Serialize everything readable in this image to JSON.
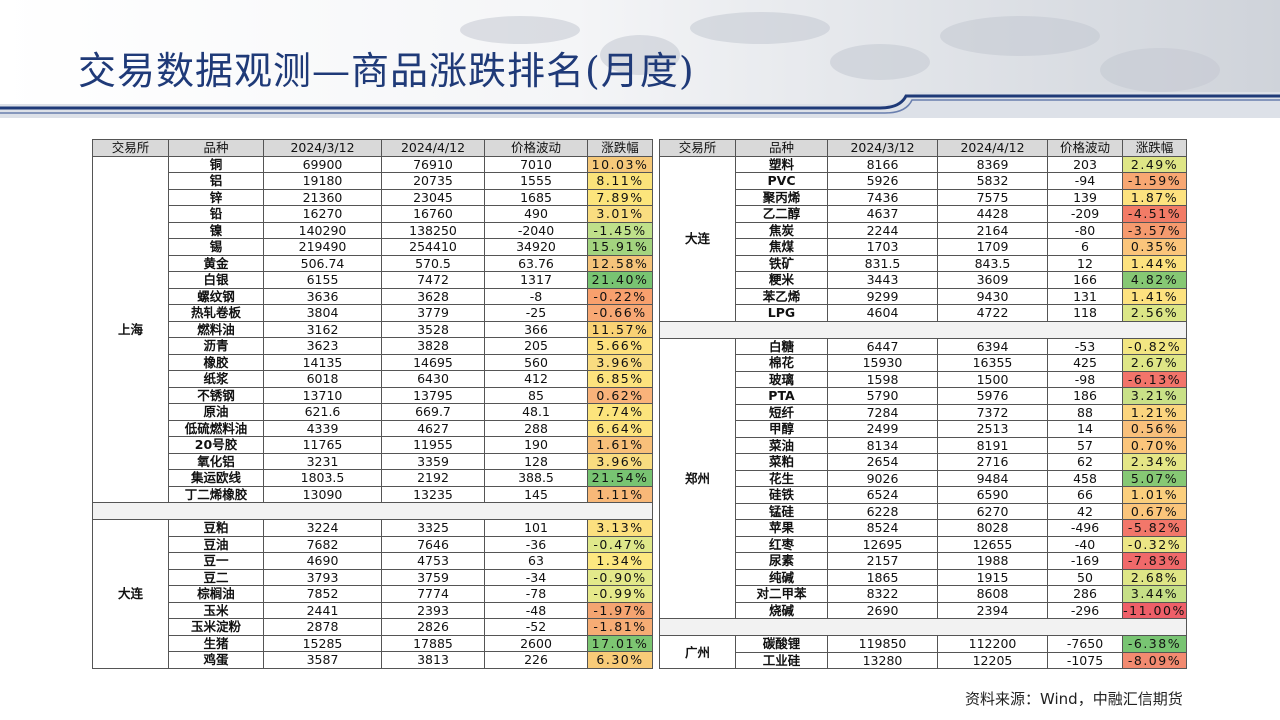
{
  "title": "交易数据观测—商品涨跌排名(月度)",
  "source": "资料来源：Wind，中融汇信期货",
  "headers": [
    "交易所",
    "品种",
    "2024/3/12",
    "2024/4/12",
    "价格波动",
    "涨跌幅"
  ],
  "left_table": {
    "groups": [
      {
        "exchange": "上海",
        "rows": [
          [
            "铜",
            "69900",
            "76910",
            "7010",
            "10.03%",
            "#f6c97a"
          ],
          [
            "铝",
            "19180",
            "20735",
            "1555",
            "8.11%",
            "#fbe37a"
          ],
          [
            "锌",
            "21360",
            "23045",
            "1685",
            "7.89%",
            "#fce57c"
          ],
          [
            "铅",
            "16270",
            "16760",
            "490",
            "3.01%",
            "#f9dd80"
          ],
          [
            "镍",
            "140290",
            "138250",
            "-2040",
            "-1.45%",
            "#bfe08a"
          ],
          [
            "锡",
            "219490",
            "254410",
            "34920",
            "15.91%",
            "#a3d47f"
          ],
          [
            "黄金",
            "506.74",
            "570.5",
            "63.76",
            "12.58%",
            "#f5c47a"
          ],
          [
            "白银",
            "6155",
            "7472",
            "1317",
            "21.40%",
            "#78c472"
          ],
          [
            "螺纹钢",
            "3636",
            "3628",
            "-8",
            "-0.22%",
            "#f8a06d"
          ],
          [
            "热轧卷板",
            "3804",
            "3779",
            "-25",
            "-0.66%",
            "#f8a874"
          ],
          [
            "燃料油",
            "3162",
            "3528",
            "366",
            "11.57%",
            "#f9d274"
          ],
          [
            "沥青",
            "3623",
            "3828",
            "205",
            "5.66%",
            "#fde17e"
          ],
          [
            "橡胶",
            "14135",
            "14695",
            "560",
            "3.96%",
            "#f9dc80"
          ],
          [
            "纸浆",
            "6018",
            "6430",
            "412",
            "6.85%",
            "#fde37d"
          ],
          [
            "不锈钢",
            "13710",
            "13795",
            "85",
            "0.62%",
            "#f9b37a"
          ],
          [
            "原油",
            "621.6",
            "669.7",
            "48.1",
            "7.74%",
            "#fce47c"
          ],
          [
            "低硫燃料油",
            "4339",
            "4627",
            "288",
            "6.64%",
            "#fde37d"
          ],
          [
            "20号胶",
            "11765",
            "11955",
            "190",
            "1.61%",
            "#f8c07a"
          ],
          [
            "氧化铝",
            "3231",
            "3359",
            "128",
            "3.96%",
            "#f9dc80"
          ],
          [
            "集运欧线",
            "1803.5",
            "2192",
            "388.5",
            "21.54%",
            "#78c472"
          ],
          [
            "丁二烯橡胶",
            "13090",
            "13235",
            "145",
            "1.11%",
            "#f8b878"
          ]
        ]
      },
      {
        "exchange": "大连",
        "rows": [
          [
            "豆粕",
            "3224",
            "3325",
            "101",
            "3.13%",
            "#fce07f"
          ],
          [
            "豆油",
            "7682",
            "7646",
            "-36",
            "-0.47%",
            "#dfe88a"
          ],
          [
            "豆一",
            "4690",
            "4753",
            "63",
            "1.34%",
            "#fde880"
          ],
          [
            "豆二",
            "3793",
            "3759",
            "-34",
            "-0.90%",
            "#e3e98a"
          ],
          [
            "棕榈油",
            "7852",
            "7774",
            "-78",
            "-0.99%",
            "#e6e98a"
          ],
          [
            "玉米",
            "2441",
            "2393",
            "-48",
            "-1.97%",
            "#f4a471"
          ],
          [
            "玉米淀粉",
            "2878",
            "2826",
            "-52",
            "-1.81%",
            "#f6ac74"
          ],
          [
            "生猪",
            "15285",
            "17885",
            "2600",
            "17.01%",
            "#7dc672"
          ],
          [
            "鸡蛋",
            "3587",
            "3813",
            "226",
            "6.30%",
            "#f8cb78"
          ]
        ]
      }
    ]
  },
  "right_table": {
    "groups": [
      {
        "exchange": "大连",
        "rows": [
          [
            "塑料",
            "8166",
            "8369",
            "203",
            "2.49%",
            "#dfe686"
          ],
          [
            "PVC",
            "5926",
            "5832",
            "-94",
            "-1.59%",
            "#f8a772"
          ],
          [
            "聚丙烯",
            "7436",
            "7575",
            "139",
            "1.87%",
            "#fde27f"
          ],
          [
            "乙二醇",
            "4637",
            "4428",
            "-209",
            "-4.51%",
            "#f27b66"
          ],
          [
            "焦炭",
            "2244",
            "2164",
            "-80",
            "-3.57%",
            "#f59a6e"
          ],
          [
            "焦煤",
            "1703",
            "1709",
            "6",
            "0.35%",
            "#fbc57b"
          ],
          [
            "铁矿",
            "831.5",
            "843.5",
            "12",
            "1.44%",
            "#fde27f"
          ],
          [
            "粳米",
            "3443",
            "3609",
            "166",
            "4.82%",
            "#86c874"
          ],
          [
            "苯乙烯",
            "9299",
            "9430",
            "131",
            "1.41%",
            "#fde27f"
          ],
          [
            "LPG",
            "4604",
            "4722",
            "118",
            "2.56%",
            "#dbe686"
          ]
        ]
      },
      {
        "exchange": "郑州",
        "rows": [
          [
            "白糖",
            "6447",
            "6394",
            "-53",
            "-0.82%",
            "#f3e682"
          ],
          [
            "棉花",
            "15930",
            "16355",
            "425",
            "2.67%",
            "#dfe686"
          ],
          [
            "玻璃",
            "1598",
            "1500",
            "-98",
            "-6.13%",
            "#f2746a"
          ],
          [
            "PTA",
            "5790",
            "5976",
            "186",
            "3.21%",
            "#c9e187"
          ],
          [
            "短纤",
            "7284",
            "7372",
            "88",
            "1.21%",
            "#fbd57e"
          ],
          [
            "甲醇",
            "2499",
            "2513",
            "14",
            "0.56%",
            "#f9c07b"
          ],
          [
            "菜油",
            "8134",
            "8191",
            "57",
            "0.70%",
            "#fbc57b"
          ],
          [
            "菜粕",
            "2654",
            "2716",
            "62",
            "2.34%",
            "#e4e686"
          ],
          [
            "花生",
            "9026",
            "9484",
            "458",
            "5.07%",
            "#86c874"
          ],
          [
            "硅铁",
            "6524",
            "6590",
            "66",
            "1.01%",
            "#fbcf7d"
          ],
          [
            "锰硅",
            "6228",
            "6270",
            "42",
            "0.67%",
            "#fbc57b"
          ],
          [
            "苹果",
            "8524",
            "8028",
            "-496",
            "-5.82%",
            "#f2776a"
          ],
          [
            "红枣",
            "12695",
            "12655",
            "-40",
            "-0.32%",
            "#ece685"
          ],
          [
            "尿素",
            "2157",
            "1988",
            "-169",
            "-7.83%",
            "#f0696a"
          ],
          [
            "纯碱",
            "1865",
            "1915",
            "50",
            "2.68%",
            "#dfe686"
          ],
          [
            "对二甲苯",
            "8322",
            "8608",
            "286",
            "3.44%",
            "#c6df86"
          ],
          [
            "烧碱",
            "2690",
            "2394",
            "-296",
            "-11.00%",
            "#ee5f68"
          ]
        ]
      },
      {
        "exchange": "广州",
        "rows": [
          [
            "碳酸锂",
            "119850",
            "112200",
            "-7650",
            "-6.38%",
            "#78c472"
          ],
          [
            "工业硅",
            "13280",
            "12205",
            "-1075",
            "-8.09%",
            "#f28a70"
          ]
        ]
      }
    ]
  }
}
